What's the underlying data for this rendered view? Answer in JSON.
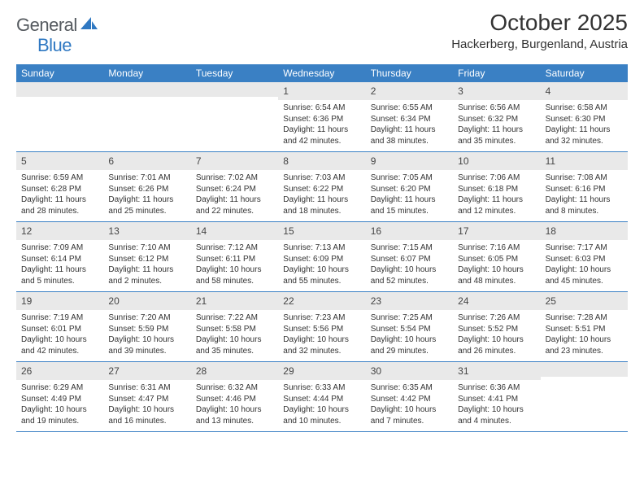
{
  "logo": {
    "general": "General",
    "blue": "Blue"
  },
  "title": "October 2025",
  "location": "Hackerberg, Burgenland, Austria",
  "colors": {
    "headerBar": "#3a80c4",
    "numRowBg": "#e9e9e9",
    "text": "#333333",
    "rule": "#3a80c4",
    "logoGray": "#555a5f",
    "logoBlue": "#2f78c2",
    "pageBg": "#ffffff"
  },
  "dayNames": [
    "Sunday",
    "Monday",
    "Tuesday",
    "Wednesday",
    "Thursday",
    "Friday",
    "Saturday"
  ],
  "weeks": [
    [
      {
        "n": "",
        "sunrise": "",
        "sunset": "",
        "daylight1": "",
        "daylight2": ""
      },
      {
        "n": "",
        "sunrise": "",
        "sunset": "",
        "daylight1": "",
        "daylight2": ""
      },
      {
        "n": "",
        "sunrise": "",
        "sunset": "",
        "daylight1": "",
        "daylight2": ""
      },
      {
        "n": "1",
        "sunrise": "Sunrise: 6:54 AM",
        "sunset": "Sunset: 6:36 PM",
        "daylight1": "Daylight: 11 hours",
        "daylight2": "and 42 minutes."
      },
      {
        "n": "2",
        "sunrise": "Sunrise: 6:55 AM",
        "sunset": "Sunset: 6:34 PM",
        "daylight1": "Daylight: 11 hours",
        "daylight2": "and 38 minutes."
      },
      {
        "n": "3",
        "sunrise": "Sunrise: 6:56 AM",
        "sunset": "Sunset: 6:32 PM",
        "daylight1": "Daylight: 11 hours",
        "daylight2": "and 35 minutes."
      },
      {
        "n": "4",
        "sunrise": "Sunrise: 6:58 AM",
        "sunset": "Sunset: 6:30 PM",
        "daylight1": "Daylight: 11 hours",
        "daylight2": "and 32 minutes."
      }
    ],
    [
      {
        "n": "5",
        "sunrise": "Sunrise: 6:59 AM",
        "sunset": "Sunset: 6:28 PM",
        "daylight1": "Daylight: 11 hours",
        "daylight2": "and 28 minutes."
      },
      {
        "n": "6",
        "sunrise": "Sunrise: 7:01 AM",
        "sunset": "Sunset: 6:26 PM",
        "daylight1": "Daylight: 11 hours",
        "daylight2": "and 25 minutes."
      },
      {
        "n": "7",
        "sunrise": "Sunrise: 7:02 AM",
        "sunset": "Sunset: 6:24 PM",
        "daylight1": "Daylight: 11 hours",
        "daylight2": "and 22 minutes."
      },
      {
        "n": "8",
        "sunrise": "Sunrise: 7:03 AM",
        "sunset": "Sunset: 6:22 PM",
        "daylight1": "Daylight: 11 hours",
        "daylight2": "and 18 minutes."
      },
      {
        "n": "9",
        "sunrise": "Sunrise: 7:05 AM",
        "sunset": "Sunset: 6:20 PM",
        "daylight1": "Daylight: 11 hours",
        "daylight2": "and 15 minutes."
      },
      {
        "n": "10",
        "sunrise": "Sunrise: 7:06 AM",
        "sunset": "Sunset: 6:18 PM",
        "daylight1": "Daylight: 11 hours",
        "daylight2": "and 12 minutes."
      },
      {
        "n": "11",
        "sunrise": "Sunrise: 7:08 AM",
        "sunset": "Sunset: 6:16 PM",
        "daylight1": "Daylight: 11 hours",
        "daylight2": "and 8 minutes."
      }
    ],
    [
      {
        "n": "12",
        "sunrise": "Sunrise: 7:09 AM",
        "sunset": "Sunset: 6:14 PM",
        "daylight1": "Daylight: 11 hours",
        "daylight2": "and 5 minutes."
      },
      {
        "n": "13",
        "sunrise": "Sunrise: 7:10 AM",
        "sunset": "Sunset: 6:12 PM",
        "daylight1": "Daylight: 11 hours",
        "daylight2": "and 2 minutes."
      },
      {
        "n": "14",
        "sunrise": "Sunrise: 7:12 AM",
        "sunset": "Sunset: 6:11 PM",
        "daylight1": "Daylight: 10 hours",
        "daylight2": "and 58 minutes."
      },
      {
        "n": "15",
        "sunrise": "Sunrise: 7:13 AM",
        "sunset": "Sunset: 6:09 PM",
        "daylight1": "Daylight: 10 hours",
        "daylight2": "and 55 minutes."
      },
      {
        "n": "16",
        "sunrise": "Sunrise: 7:15 AM",
        "sunset": "Sunset: 6:07 PM",
        "daylight1": "Daylight: 10 hours",
        "daylight2": "and 52 minutes."
      },
      {
        "n": "17",
        "sunrise": "Sunrise: 7:16 AM",
        "sunset": "Sunset: 6:05 PM",
        "daylight1": "Daylight: 10 hours",
        "daylight2": "and 48 minutes."
      },
      {
        "n": "18",
        "sunrise": "Sunrise: 7:17 AM",
        "sunset": "Sunset: 6:03 PM",
        "daylight1": "Daylight: 10 hours",
        "daylight2": "and 45 minutes."
      }
    ],
    [
      {
        "n": "19",
        "sunrise": "Sunrise: 7:19 AM",
        "sunset": "Sunset: 6:01 PM",
        "daylight1": "Daylight: 10 hours",
        "daylight2": "and 42 minutes."
      },
      {
        "n": "20",
        "sunrise": "Sunrise: 7:20 AM",
        "sunset": "Sunset: 5:59 PM",
        "daylight1": "Daylight: 10 hours",
        "daylight2": "and 39 minutes."
      },
      {
        "n": "21",
        "sunrise": "Sunrise: 7:22 AM",
        "sunset": "Sunset: 5:58 PM",
        "daylight1": "Daylight: 10 hours",
        "daylight2": "and 35 minutes."
      },
      {
        "n": "22",
        "sunrise": "Sunrise: 7:23 AM",
        "sunset": "Sunset: 5:56 PM",
        "daylight1": "Daylight: 10 hours",
        "daylight2": "and 32 minutes."
      },
      {
        "n": "23",
        "sunrise": "Sunrise: 7:25 AM",
        "sunset": "Sunset: 5:54 PM",
        "daylight1": "Daylight: 10 hours",
        "daylight2": "and 29 minutes."
      },
      {
        "n": "24",
        "sunrise": "Sunrise: 7:26 AM",
        "sunset": "Sunset: 5:52 PM",
        "daylight1": "Daylight: 10 hours",
        "daylight2": "and 26 minutes."
      },
      {
        "n": "25",
        "sunrise": "Sunrise: 7:28 AM",
        "sunset": "Sunset: 5:51 PM",
        "daylight1": "Daylight: 10 hours",
        "daylight2": "and 23 minutes."
      }
    ],
    [
      {
        "n": "26",
        "sunrise": "Sunrise: 6:29 AM",
        "sunset": "Sunset: 4:49 PM",
        "daylight1": "Daylight: 10 hours",
        "daylight2": "and 19 minutes."
      },
      {
        "n": "27",
        "sunrise": "Sunrise: 6:31 AM",
        "sunset": "Sunset: 4:47 PM",
        "daylight1": "Daylight: 10 hours",
        "daylight2": "and 16 minutes."
      },
      {
        "n": "28",
        "sunrise": "Sunrise: 6:32 AM",
        "sunset": "Sunset: 4:46 PM",
        "daylight1": "Daylight: 10 hours",
        "daylight2": "and 13 minutes."
      },
      {
        "n": "29",
        "sunrise": "Sunrise: 6:33 AM",
        "sunset": "Sunset: 4:44 PM",
        "daylight1": "Daylight: 10 hours",
        "daylight2": "and 10 minutes."
      },
      {
        "n": "30",
        "sunrise": "Sunrise: 6:35 AM",
        "sunset": "Sunset: 4:42 PM",
        "daylight1": "Daylight: 10 hours",
        "daylight2": "and 7 minutes."
      },
      {
        "n": "31",
        "sunrise": "Sunrise: 6:36 AM",
        "sunset": "Sunset: 4:41 PM",
        "daylight1": "Daylight: 10 hours",
        "daylight2": "and 4 minutes."
      },
      {
        "n": "",
        "sunrise": "",
        "sunset": "",
        "daylight1": "",
        "daylight2": ""
      }
    ]
  ]
}
